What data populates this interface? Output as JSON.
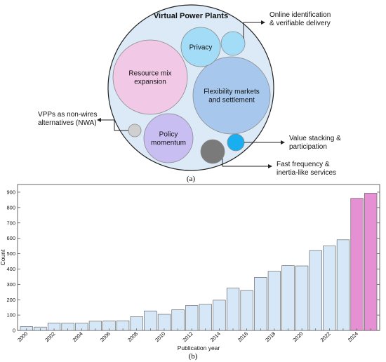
{
  "panel_a": {
    "title": "Virtual Power Plants",
    "caption": "(a)",
    "outer_fill": "#dce9f6",
    "bubbles": [
      {
        "key": "resource",
        "lines": [
          "Resource mix",
          "expansion"
        ],
        "color": "#f1c8e6"
      },
      {
        "key": "flex",
        "lines": [
          "Flexibility markets",
          "and settlement"
        ],
        "color": "#a7c8ec"
      },
      {
        "key": "privacy",
        "lines": [
          "Privacy"
        ],
        "color": "#a3dcf7"
      },
      {
        "key": "online",
        "lines": [],
        "color": "#a3dcf7"
      },
      {
        "key": "policy",
        "lines": [
          "Policy",
          "momentum"
        ],
        "color": "#c9bef2"
      },
      {
        "key": "nwa",
        "lines": [],
        "color": "#cfcfcf"
      },
      {
        "key": "value",
        "lines": [],
        "color": "#19aef0"
      },
      {
        "key": "fast",
        "lines": [],
        "color": "#7a7a7a"
      }
    ],
    "callouts": [
      {
        "key": "online",
        "lines": [
          "Online identification",
          "& verifiable delivery"
        ]
      },
      {
        "key": "nwa",
        "lines": [
          "VPPs as non-wires",
          "alternatives (NWA)"
        ]
      },
      {
        "key": "value",
        "lines": [
          "Value stacking &",
          "participation"
        ]
      },
      {
        "key": "fast",
        "lines": [
          "Fast frequency &",
          "inertia-like services"
        ]
      }
    ]
  },
  "chart_data": {
    "type": "bar",
    "categories": [
      "2000",
      "2001",
      "2002",
      "2003",
      "2004",
      "2005",
      "2006",
      "2007",
      "2008",
      "2009",
      "2010",
      "2011",
      "2012",
      "2013",
      "2014",
      "2015",
      "2016",
      "2017",
      "2018",
      "2019",
      "2020",
      "2021",
      "2022",
      "2023",
      "2024",
      "2025"
    ],
    "values": [
      25,
      22,
      48,
      48,
      47,
      60,
      62,
      63,
      90,
      127,
      105,
      135,
      162,
      170,
      197,
      275,
      260,
      345,
      385,
      422,
      420,
      520,
      550,
      590,
      860,
      893
    ],
    "xlabel": "Publication year",
    "ylabel": "Count",
    "ylim": [
      0,
      950
    ],
    "yticks": [
      0,
      100,
      200,
      300,
      400,
      500,
      600,
      700,
      800,
      900
    ],
    "xticks_shown": [
      "2000",
      "2002",
      "2004",
      "2006",
      "2008",
      "2010",
      "2012",
      "2014",
      "2016",
      "2018",
      "2020",
      "2022",
      "2024"
    ],
    "highlight_from_index": 24,
    "colors": {
      "base": "#d6e7f7",
      "highlight": "#e690d4",
      "edge": "#555555"
    },
    "caption": "(b)"
  }
}
